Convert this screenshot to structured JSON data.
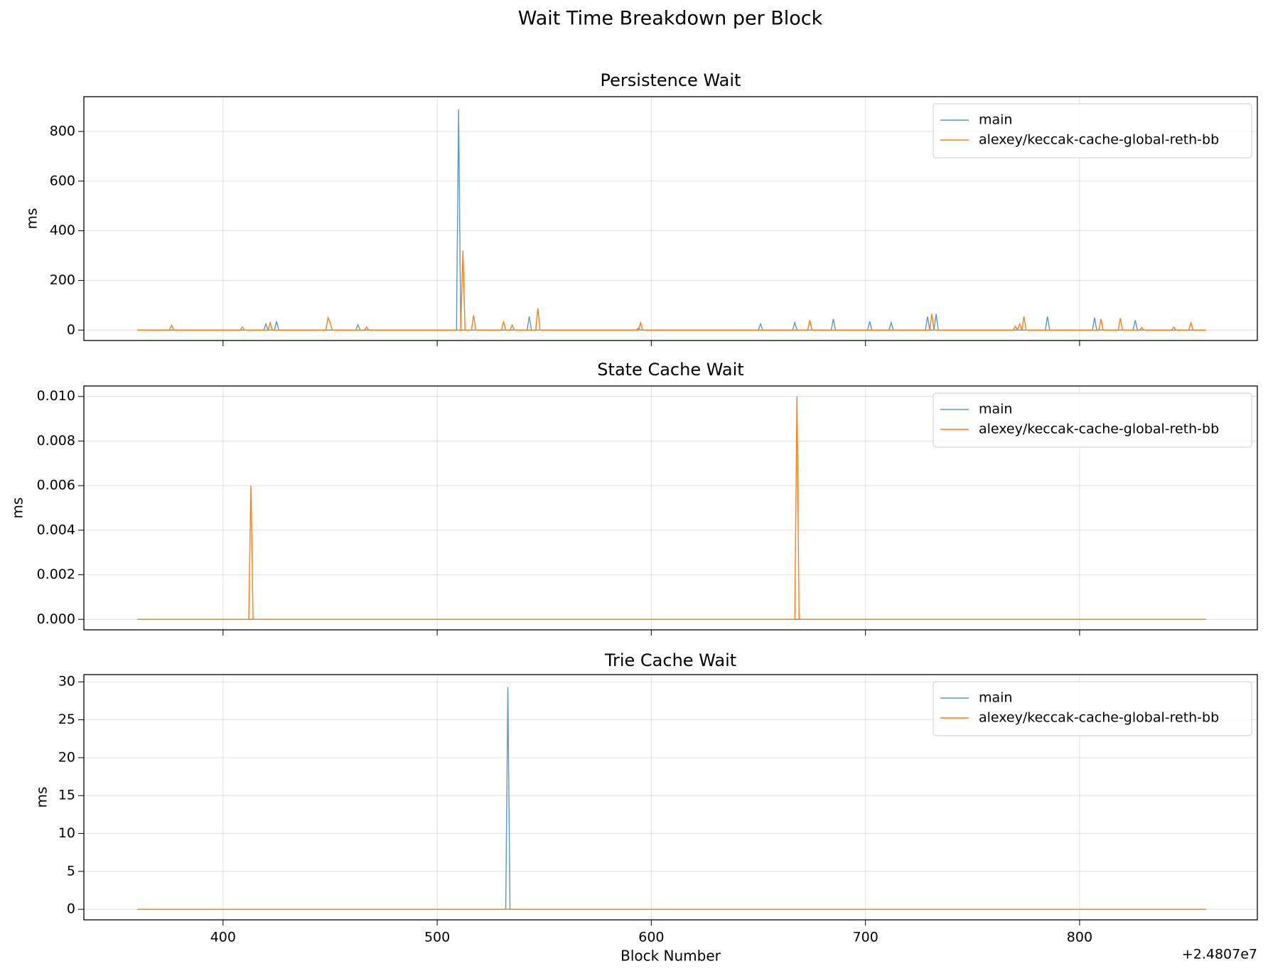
{
  "title": "Wait Time Breakdown per Block",
  "chart_data": [
    {
      "type": "line",
      "title": "Persistence Wait",
      "ylabel": "ms",
      "xlim": [
        335,
        883
      ],
      "xticks": [
        400,
        500,
        600,
        700,
        800
      ],
      "ylim": [
        -42,
        940
      ],
      "yticks": [
        0,
        200,
        400,
        600,
        800
      ],
      "grid": true,
      "legend": "upper right",
      "series": [
        {
          "name": "main",
          "color": "#1f77b4",
          "x": [
            360,
            419,
            420,
            421,
            424,
            425,
            426,
            462,
            463,
            464,
            509,
            510,
            511,
            542,
            543,
            544,
            593,
            594,
            595,
            650,
            651,
            652,
            666,
            667,
            668,
            684,
            685,
            686,
            701,
            702,
            703,
            711,
            712,
            713,
            728,
            729,
            730,
            732,
            733,
            734,
            784,
            785,
            786,
            806,
            807,
            808,
            825,
            826,
            827,
            859
          ],
          "values": [
            0,
            0,
            25,
            0,
            0,
            35,
            0,
            0,
            22,
            0,
            0,
            890,
            0,
            0,
            55,
            0,
            0,
            8,
            0,
            0,
            25,
            0,
            0,
            30,
            0,
            0,
            45,
            0,
            0,
            35,
            0,
            0,
            30,
            0,
            0,
            55,
            0,
            0,
            65,
            0,
            0,
            55,
            0,
            0,
            50,
            0,
            0,
            40,
            0,
            0
          ]
        },
        {
          "name": "alexey/keccak-cache-global-reth-bb",
          "color": "#ff7f0e",
          "x": [
            360,
            375,
            376,
            377,
            408,
            409,
            410,
            421,
            422,
            423,
            448,
            449,
            450,
            451,
            466,
            467,
            468,
            511,
            512,
            513,
            516,
            517,
            518,
            530,
            531,
            532,
            534,
            535,
            536,
            546,
            547,
            548,
            594,
            595,
            596,
            673,
            674,
            675,
            730,
            731,
            732,
            769,
            770,
            771,
            772,
            773,
            774,
            775,
            809,
            810,
            811,
            818,
            819,
            820,
            828,
            829,
            830,
            843,
            844,
            845,
            851,
            852,
            853,
            859
          ],
          "values": [
            0,
            0,
            20,
            0,
            0,
            12,
            0,
            0,
            30,
            0,
            0,
            50,
            30,
            0,
            0,
            12,
            0,
            0,
            320,
            0,
            0,
            60,
            0,
            0,
            35,
            0,
            0,
            20,
            0,
            0,
            88,
            0,
            0,
            30,
            0,
            0,
            40,
            0,
            0,
            65,
            0,
            0,
            15,
            0,
            25,
            0,
            55,
            0,
            0,
            45,
            0,
            0,
            48,
            0,
            0,
            10,
            0,
            0,
            12,
            0,
            0,
            30,
            0,
            0
          ]
        }
      ]
    },
    {
      "type": "line",
      "title": "State Cache Wait",
      "ylabel": "ms",
      "xlim": [
        335,
        883
      ],
      "xticks": [
        400,
        500,
        600,
        700,
        800
      ],
      "ylim": [
        -0.00047,
        0.01047
      ],
      "yticks": [
        {
          "value": 0,
          "label": "0.000"
        },
        {
          "value": 0.002,
          "label": "0.002"
        },
        {
          "value": 0.004,
          "label": "0.004"
        },
        {
          "value": 0.006,
          "label": "0.006"
        },
        {
          "value": 0.008,
          "label": "0.008"
        },
        {
          "value": 0.01,
          "label": "0.010"
        }
      ],
      "grid": true,
      "legend": "upper right",
      "series": [
        {
          "name": "main",
          "color": "#1f77b4",
          "x": [
            360,
            859
          ],
          "values": [
            0,
            0
          ]
        },
        {
          "name": "alexey/keccak-cache-global-reth-bb",
          "color": "#ff7f0e",
          "x": [
            360,
            412,
            413,
            414,
            667,
            668,
            669,
            859
          ],
          "values": [
            0,
            0,
            0.006,
            0,
            0,
            0.01,
            0,
            0
          ]
        }
      ]
    },
    {
      "type": "line",
      "title": "Trie Cache Wait",
      "ylabel": "ms",
      "xlabel": "Block Number",
      "x_offset_label": "+2.4807e7",
      "xlim": [
        335,
        883
      ],
      "xticks": [
        400,
        500,
        600,
        700,
        800
      ],
      "ylim": [
        -1.39,
        30.96
      ],
      "yticks": [
        0,
        5,
        10,
        15,
        20,
        25,
        30
      ],
      "grid": true,
      "legend": "upper right",
      "series": [
        {
          "name": "main",
          "color": "#1f77b4",
          "x": [
            360,
            532,
            533,
            534,
            859
          ],
          "values": [
            0,
            0,
            29.3,
            0,
            0
          ]
        },
        {
          "name": "alexey/keccak-cache-global-reth-bb",
          "color": "#ff7f0e",
          "x": [
            360,
            859
          ],
          "values": [
            0,
            0
          ]
        }
      ]
    }
  ]
}
